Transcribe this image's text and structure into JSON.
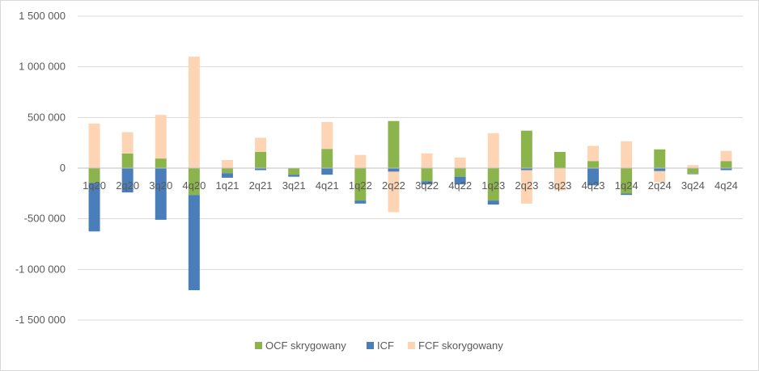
{
  "chart_data": {
    "type": "bar",
    "stacked": true,
    "categories": [
      "1q20",
      "2q20",
      "3q20",
      "4q20",
      "1q21",
      "2q21",
      "3q21",
      "4q21",
      "1q22",
      "2q22",
      "3q22",
      "4q22",
      "1q23",
      "2q23",
      "3q23",
      "4q23",
      "1q24",
      "2q24",
      "3q24",
      "4q24"
    ],
    "series": [
      {
        "name": "OCF skrygowany",
        "color": "#8cb44c",
        "values": [
          -145000,
          145000,
          95000,
          -265000,
          -50000,
          160000,
          -65000,
          190000,
          -320000,
          465000,
          -130000,
          -85000,
          -320000,
          370000,
          160000,
          70000,
          -250000,
          185000,
          -55000,
          70000
        ]
      },
      {
        "name": "ICF",
        "color": "#4a7ebb",
        "values": [
          -480000,
          -240000,
          -510000,
          -940000,
          -45000,
          -20000,
          -20000,
          -65000,
          -30000,
          -35000,
          -30000,
          -75000,
          -40000,
          -20000,
          -5000,
          -170000,
          -15000,
          -30000,
          -5000,
          -20000
        ]
      },
      {
        "name": "FCF skorygowany",
        "color": "#fdd5b4",
        "values": [
          440000,
          210000,
          430000,
          1100000,
          80000,
          140000,
          0,
          265000,
          130000,
          -400000,
          145000,
          105000,
          345000,
          -330000,
          -215000,
          150000,
          265000,
          -110000,
          30000,
          100000
        ]
      }
    ],
    "ylim": [
      -1500000,
      1500000
    ],
    "yticks": [
      1500000,
      1000000,
      500000,
      0,
      -500000,
      -1000000,
      -1500000
    ],
    "ytick_labels": [
      "1 500 000",
      "1 000 000",
      "500 000",
      "0",
      "-500 000",
      "-1 000 000",
      "-1 500 000"
    ],
    "grid": true,
    "legend_position": "bottom"
  }
}
